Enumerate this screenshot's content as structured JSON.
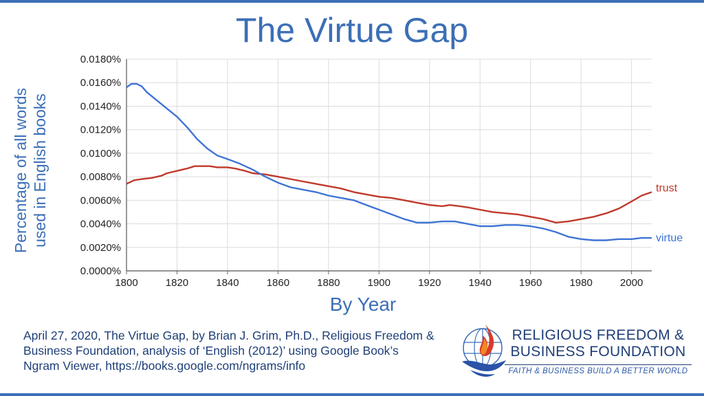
{
  "title": "The Virtue Gap",
  "caption": "April 27, 2020, The Virtue Gap, by Brian J. Grim, Ph.D., Religious Freedom & Business Foundation, analysis of ‘English (2012)’ using Google Book’s Ngram Viewer, https://books.google.com/ngrams/info",
  "logo": {
    "name": "RELIGIOUS FREEDOM & BUSINESS FOUNDATION",
    "tagline": "FAITH & BUSINESS BUILD A BETTER WORLD"
  },
  "colors": {
    "accent": "#3c6fb6",
    "trust": "#c0392b",
    "virtue": "#3f74d4"
  },
  "chart_data": {
    "type": "line",
    "title": "The Virtue Gap",
    "xlabel": "By Year",
    "ylabel": "Percentage of all words used in English books",
    "xlim": [
      1800,
      2008
    ],
    "ylim": [
      0,
      0.018
    ],
    "x_ticks": [
      1800,
      1820,
      1840,
      1860,
      1880,
      1900,
      1920,
      1940,
      1960,
      1980,
      2000
    ],
    "y_ticks": [
      0,
      0.002,
      0.004,
      0.006,
      0.008,
      0.01,
      0.012,
      0.014,
      0.016,
      0.018
    ],
    "y_tick_labels": [
      "0.0000%",
      "0.0020%",
      "0.0040%",
      "0.0060%",
      "0.0080%",
      "0.0100%",
      "0.0120%",
      "0.0140%",
      "0.0160%",
      "0.0180%"
    ],
    "grid": true,
    "series": [
      {
        "name": "trust",
        "x": [
          1800,
          1803,
          1806,
          1810,
          1814,
          1816,
          1820,
          1824,
          1827,
          1830,
          1833,
          1836,
          1840,
          1843,
          1847,
          1850,
          1855,
          1860,
          1865,
          1870,
          1875,
          1880,
          1885,
          1890,
          1895,
          1900,
          1905,
          1910,
          1915,
          1920,
          1925,
          1928,
          1932,
          1935,
          1940,
          1945,
          1950,
          1955,
          1960,
          1965,
          1970,
          1975,
          1980,
          1985,
          1990,
          1995,
          2000,
          2004,
          2008
        ],
        "y": [
          0.0074,
          0.0077,
          0.0078,
          0.0079,
          0.0081,
          0.0083,
          0.0085,
          0.0087,
          0.0089,
          0.0089,
          0.0089,
          0.0088,
          0.0088,
          0.0087,
          0.0085,
          0.0083,
          0.0082,
          0.008,
          0.0078,
          0.0076,
          0.0074,
          0.0072,
          0.007,
          0.0067,
          0.0065,
          0.0063,
          0.0062,
          0.006,
          0.0058,
          0.0056,
          0.0055,
          0.0056,
          0.0055,
          0.0054,
          0.0052,
          0.005,
          0.0049,
          0.0048,
          0.0046,
          0.0044,
          0.0041,
          0.0042,
          0.0044,
          0.0046,
          0.0049,
          0.0053,
          0.0059,
          0.0064,
          0.0067
        ]
      },
      {
        "name": "virtue",
        "x": [
          1800,
          1802,
          1804,
          1806,
          1808,
          1812,
          1816,
          1820,
          1824,
          1828,
          1832,
          1836,
          1840,
          1845,
          1850,
          1855,
          1860,
          1865,
          1870,
          1875,
          1880,
          1885,
          1890,
          1895,
          1900,
          1905,
          1910,
          1915,
          1920,
          1925,
          1930,
          1935,
          1940,
          1945,
          1950,
          1955,
          1960,
          1965,
          1970,
          1975,
          1980,
          1985,
          1990,
          1995,
          2000,
          2004,
          2008
        ],
        "y": [
          0.0156,
          0.0159,
          0.0159,
          0.0157,
          0.0152,
          0.0145,
          0.0138,
          0.0131,
          0.0122,
          0.0112,
          0.0104,
          0.0098,
          0.0095,
          0.0091,
          0.0086,
          0.008,
          0.0075,
          0.0071,
          0.0069,
          0.0067,
          0.0064,
          0.0062,
          0.006,
          0.0056,
          0.0052,
          0.0048,
          0.0044,
          0.0041,
          0.0041,
          0.0042,
          0.0042,
          0.004,
          0.0038,
          0.0038,
          0.0039,
          0.0039,
          0.0038,
          0.0036,
          0.0033,
          0.0029,
          0.0027,
          0.0026,
          0.0026,
          0.0027,
          0.0027,
          0.0028,
          0.0028
        ]
      }
    ]
  }
}
